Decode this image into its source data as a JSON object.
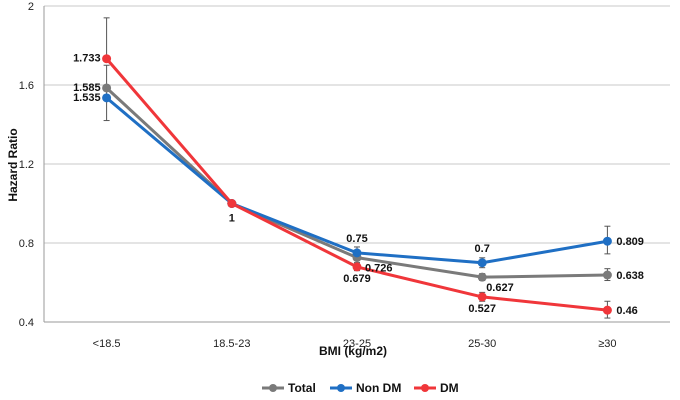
{
  "chart_data": {
    "type": "line",
    "title": "",
    "xlabel": "BMI (kg/m2)",
    "ylabel": "Hazard Ratio",
    "categories": [
      "<18.5",
      "18.5-23",
      "23-25",
      "25-30",
      "≥30"
    ],
    "ylim": [
      0.4,
      2
    ],
    "yticks": [
      0.4,
      0.8,
      1.2,
      1.6,
      2
    ],
    "ytick_labels": [
      "0.4",
      "0.8",
      "1.2",
      "1.6",
      "2"
    ],
    "grid": true,
    "legend_position": "bottom",
    "series": [
      {
        "name": "Total",
        "color": "#7a7a7a",
        "values": [
          1.585,
          1,
          0.726,
          0.627,
          0.638
        ],
        "labels": [
          "1.585",
          "",
          "0.726",
          "0.627",
          "0.638"
        ],
        "error_low": [
          null,
          null,
          0.7,
          0.61,
          0.61
        ],
        "error_high": [
          null,
          null,
          0.75,
          0.645,
          0.67
        ]
      },
      {
        "name": "Non DM",
        "color": "#1f6fc4",
        "values": [
          1.535,
          1,
          0.75,
          0.7,
          0.809
        ],
        "labels": [
          "1.535",
          "1",
          "0.75",
          "0.7",
          "0.809"
        ],
        "error_low": [
          1.42,
          null,
          0.73,
          0.675,
          0.745
        ],
        "error_high": [
          1.7,
          null,
          0.78,
          0.725,
          0.885
        ]
      },
      {
        "name": "DM",
        "color": "#f0363a",
        "values": [
          1.733,
          1,
          0.679,
          0.527,
          0.46
        ],
        "labels": [
          "1.733",
          "",
          "0.679",
          "0.527",
          "0.46"
        ],
        "error_low": [
          null,
          null,
          0.66,
          0.505,
          0.42
        ],
        "error_high": [
          1.94,
          null,
          0.7,
          0.55,
          0.505
        ]
      }
    ]
  }
}
